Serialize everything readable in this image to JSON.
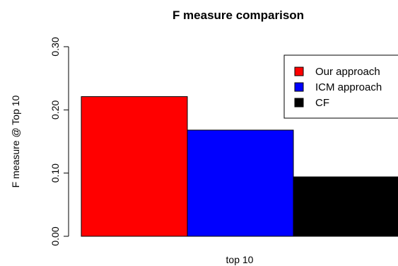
{
  "chart_data": {
    "type": "bar",
    "title": "F measure  comparison",
    "xlabel": "top 10",
    "ylabel": "F measure @ Top 10",
    "categories": [
      "top 10"
    ],
    "series": [
      {
        "name": "Our approach",
        "values": [
          0.221
        ],
        "color": "#ff0000"
      },
      {
        "name": "ICM approach",
        "values": [
          0.168
        ],
        "color": "#0000ff"
      },
      {
        "name": "CF",
        "values": [
          0.094
        ],
        "color": "#000000"
      }
    ],
    "ylim": [
      0,
      0.3
    ],
    "yticks": [
      0.0,
      0.1,
      0.2,
      0.3
    ],
    "ytick_labels": [
      "0.00",
      "0.10",
      "0.20",
      "0.30"
    ],
    "grid": false,
    "legend_position": "top-right"
  }
}
